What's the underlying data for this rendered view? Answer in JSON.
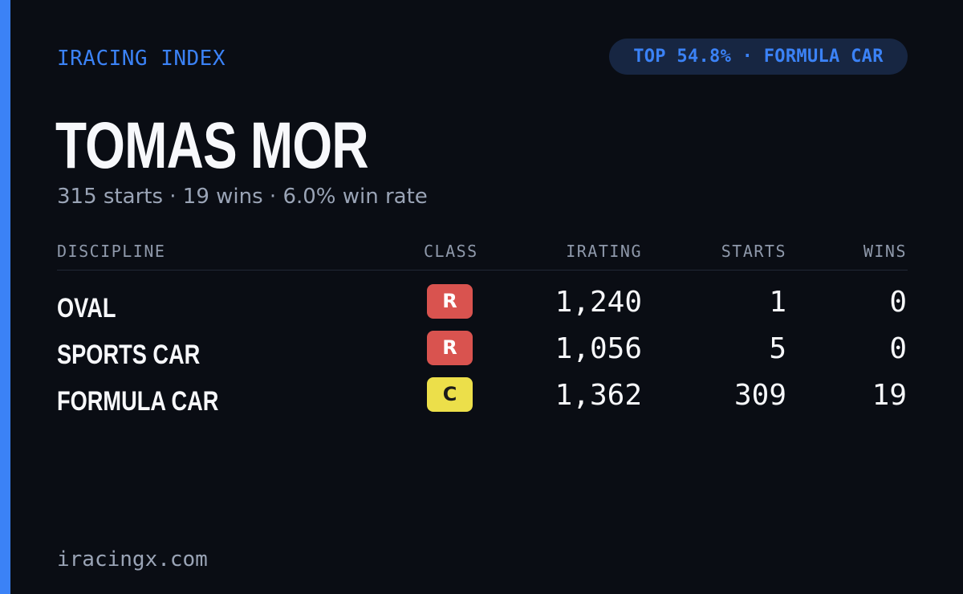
{
  "brand": "IRACING INDEX",
  "rank_pill": "TOP 54.8% · FORMULA CAR",
  "driver": {
    "name": "TOMAS MOR",
    "summary": "315 starts · 19 wins · 6.0% win rate"
  },
  "table": {
    "headers": {
      "discipline": "DISCIPLINE",
      "class": "CLASS",
      "irating": "IRATING",
      "starts": "STARTS",
      "wins": "WINS"
    },
    "rows": [
      {
        "discipline": "OVAL",
        "class": "R",
        "class_color": "#d9534f",
        "class_text_color": "#ffffff",
        "irating": "1,240",
        "starts": "1",
        "wins": "0"
      },
      {
        "discipline": "SPORTS CAR",
        "class": "R",
        "class_color": "#d9534f",
        "class_text_color": "#ffffff",
        "irating": "1,056",
        "starts": "5",
        "wins": "0"
      },
      {
        "discipline": "FORMULA CAR",
        "class": "C",
        "class_color": "#ecdf4a",
        "class_text_color": "#1a1a1a",
        "irating": "1,362",
        "starts": "309",
        "wins": "19"
      }
    ]
  },
  "footer": "iracingx.com",
  "colors": {
    "accent": "#3b82f6",
    "background": "#0a0d14",
    "pill_background": "#172642"
  }
}
